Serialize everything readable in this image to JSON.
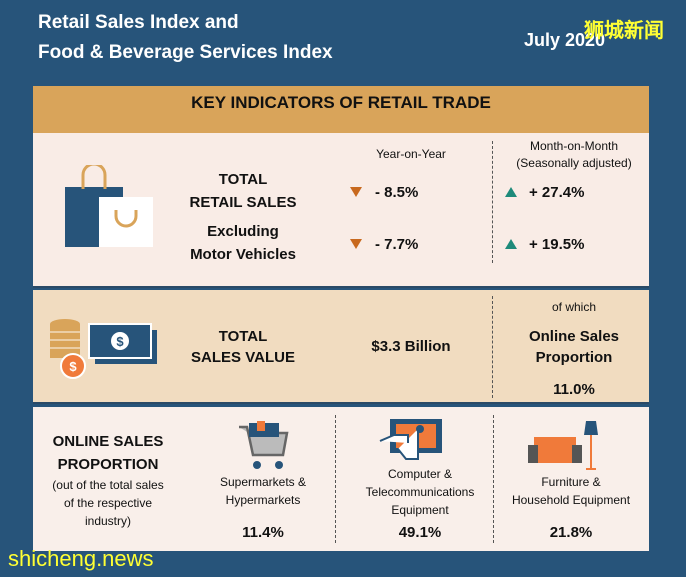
{
  "header": {
    "title_line1": "Retail Sales Index and",
    "title_line2": "Food & Beverage Services Index",
    "date": "July 2020"
  },
  "watermarks": {
    "top": "狮城新闻",
    "bottom": "shicheng.news"
  },
  "panel_title": "KEY INDICATORS OF RETAIL TRADE",
  "retail": {
    "yoy_header": "Year-on-Year",
    "mom_header_line1": "Month-on-Month",
    "mom_header_line2": "(Seasonally adjusted)",
    "total_label_line1": "TOTAL",
    "total_label_line2": "RETAIL SALES",
    "total_yoy": "- 8.5%",
    "total_mom": "+ 27.4%",
    "excl_label_line1": "Excluding",
    "excl_label_line2": "Motor Vehicles",
    "excl_yoy": "- 7.7%",
    "excl_mom": "+ 19.5%"
  },
  "sales_value": {
    "label_line1": "TOTAL",
    "label_line2": "SALES VALUE",
    "value": "$3.3 Billion",
    "of_which": "of which",
    "online_line1": "Online Sales",
    "online_line2": "Proportion",
    "online_value": "11.0%"
  },
  "online": {
    "title_line1": "ONLINE SALES",
    "title_line2": "PROPORTION",
    "note_line1": "(out of the total sales",
    "note_line2": "of the respective",
    "note_line3": "industry)",
    "items": [
      {
        "line1": "Supermarkets &",
        "line2": "Hypermarkets",
        "line3": "",
        "value": "11.4%"
      },
      {
        "line1": "Computer &",
        "line2": "Telecommunications",
        "line3": "Equipment",
        "value": "49.1%"
      },
      {
        "line1": "Furniture &",
        "line2": "Household Equipment",
        "line3": "",
        "value": "21.8%"
      }
    ]
  },
  "colors": {
    "background": "#27547a",
    "gold": "#d9a45a",
    "down": "#c8691e",
    "up": "#1e8a7a",
    "orange": "#f07a3a"
  }
}
